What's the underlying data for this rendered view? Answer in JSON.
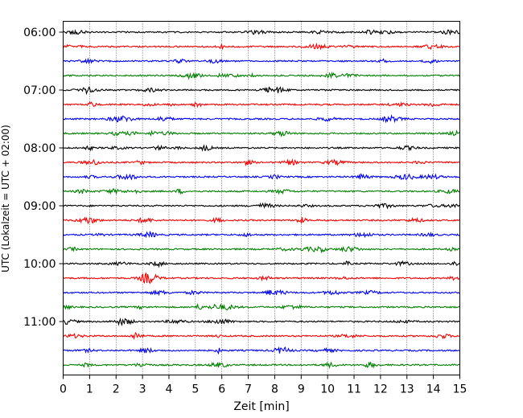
{
  "chart_data": {
    "type": "line",
    "title": "",
    "xlabel": "Zeit  [min]",
    "ylabel": "UTC (Lokalzeit = UTC + 02:00)",
    "xlim": [
      0,
      15
    ],
    "x_ticks": [
      0,
      1,
      2,
      3,
      4,
      5,
      6,
      7,
      8,
      9,
      10,
      11,
      12,
      13,
      14,
      15
    ],
    "x_tick_labels": [
      "0",
      "1",
      "2",
      "3",
      "4",
      "5",
      "6",
      "7",
      "8",
      "9",
      "10",
      "11",
      "12",
      "13",
      "14",
      "15"
    ],
    "y_tick_labels": [
      "06:00",
      "07:00",
      "08:00",
      "09:00",
      "10:00",
      "11:00"
    ],
    "y_tick_start_minutes": [
      0,
      60,
      120,
      180,
      240,
      300
    ],
    "grid": "vertical dotted at each minute",
    "trace_interval_minutes": 15,
    "color_cycle": [
      "#000000",
      "#ff0000",
      "#0000ff",
      "#008000"
    ],
    "traces": [
      {
        "start": "06:00",
        "color": "#000000"
      },
      {
        "start": "06:15",
        "color": "#ff0000"
      },
      {
        "start": "06:30",
        "color": "#0000ff"
      },
      {
        "start": "06:45",
        "color": "#008000"
      },
      {
        "start": "07:00",
        "color": "#000000"
      },
      {
        "start": "07:15",
        "color": "#ff0000"
      },
      {
        "start": "07:30",
        "color": "#0000ff"
      },
      {
        "start": "07:45",
        "color": "#008000"
      },
      {
        "start": "08:00",
        "color": "#000000"
      },
      {
        "start": "08:15",
        "color": "#ff0000"
      },
      {
        "start": "08:30",
        "color": "#0000ff"
      },
      {
        "start": "08:45",
        "color": "#008000"
      },
      {
        "start": "09:00",
        "color": "#000000"
      },
      {
        "start": "09:15",
        "color": "#ff0000"
      },
      {
        "start": "09:30",
        "color": "#0000ff"
      },
      {
        "start": "09:45",
        "color": "#008000"
      },
      {
        "start": "10:00",
        "color": "#000000"
      },
      {
        "start": "10:15",
        "color": "#ff0000"
      },
      {
        "start": "10:30",
        "color": "#0000ff"
      },
      {
        "start": "10:45",
        "color": "#008000"
      },
      {
        "start": "11:00",
        "color": "#000000"
      },
      {
        "start": "11:15",
        "color": "#ff0000"
      },
      {
        "start": "11:30",
        "color": "#0000ff"
      },
      {
        "start": "11:45",
        "color": "#008000"
      }
    ]
  }
}
